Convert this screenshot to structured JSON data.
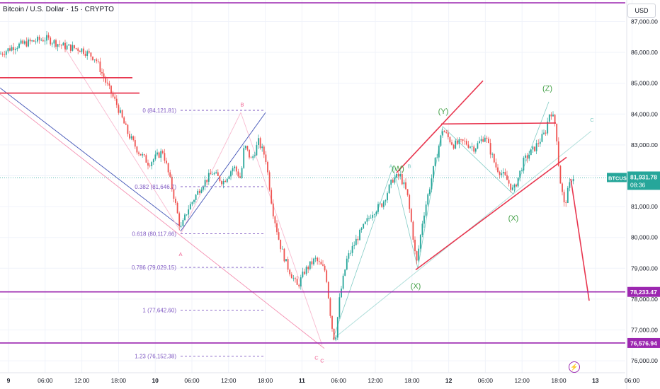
{
  "header": {
    "title": "Bitcoin / U.S. Dollar · 15 · CRYPTO",
    "currency": "USD"
  },
  "colors": {
    "up": "#26a69a",
    "down": "#ef5350",
    "purple": "#9c27b0",
    "red_line": "#e8364f",
    "fib": "#7e57c2",
    "wave": "#43a047",
    "pink": "#f06292",
    "navy": "#3f51b5",
    "teal": "#80cbc4"
  },
  "chart_data": {
    "type": "candlestick",
    "title": "Bitcoin / U.S. Dollar · 15 · CRYPTO",
    "symbol": "BTCUSD",
    "currency": "USD",
    "ylim": [
      75900,
      87350
    ],
    "y_ticks": [
      "87,000.00",
      "86,000.00",
      "85,000.00",
      "84,000.00",
      "83,000.00",
      "82,000.00",
      "81,000.00",
      "80,000.00",
      "79,000.00",
      "78,000.00",
      "77,000.00",
      "76,000.00"
    ],
    "x_ticks": [
      "9",
      "06:00",
      "12:00",
      "18:00",
      "10",
      "06:00",
      "12:00",
      "18:00",
      "11",
      "06:00",
      "12:00",
      "18:00",
      "12",
      "06:00",
      "12:00",
      "18:00",
      "13",
      "06:00"
    ],
    "price_path": [
      [
        0,
        85950
      ],
      [
        20,
        86200
      ],
      [
        45,
        86350
      ],
      [
        65,
        86450
      ],
      [
        90,
        86200
      ],
      [
        115,
        86100
      ],
      [
        135,
        85800
      ],
      [
        150,
        85000
      ],
      [
        165,
        84300
      ],
      [
        180,
        83400
      ],
      [
        195,
        82800
      ],
      [
        210,
        82400
      ],
      [
        230,
        82800
      ],
      [
        245,
        81400
      ],
      [
        255,
        80250
      ],
      [
        265,
        80900
      ],
      [
        285,
        81700
      ],
      [
        300,
        82100
      ],
      [
        315,
        81800
      ],
      [
        330,
        82300
      ],
      [
        340,
        81900
      ],
      [
        345,
        83000
      ],
      [
        355,
        82500
      ],
      [
        365,
        83100
      ],
      [
        375,
        82600
      ],
      [
        385,
        80900
      ],
      [
        395,
        79800
      ],
      [
        405,
        79100
      ],
      [
        420,
        78400
      ],
      [
        430,
        78900
      ],
      [
        445,
        79300
      ],
      [
        460,
        78900
      ],
      [
        468,
        77200
      ],
      [
        473,
        76600
      ],
      [
        480,
        78100
      ],
      [
        490,
        79300
      ],
      [
        505,
        80000
      ],
      [
        525,
        80800
      ],
      [
        540,
        81100
      ],
      [
        555,
        81900
      ],
      [
        565,
        82000
      ],
      [
        575,
        81400
      ],
      [
        582,
        80300
      ],
      [
        588,
        79100
      ],
      [
        597,
        80600
      ],
      [
        612,
        82200
      ],
      [
        625,
        83500
      ],
      [
        640,
        83000
      ],
      [
        655,
        83100
      ],
      [
        670,
        82900
      ],
      [
        685,
        83300
      ],
      [
        700,
        82300
      ],
      [
        715,
        81900
      ],
      [
        725,
        81500
      ],
      [
        740,
        82500
      ],
      [
        755,
        82900
      ],
      [
        770,
        83400
      ],
      [
        777,
        84150
      ],
      [
        785,
        83600
      ],
      [
        790,
        82000
      ],
      [
        797,
        81000
      ],
      [
        802,
        81500
      ],
      [
        808,
        82000
      ],
      [
        812,
        81900
      ]
    ],
    "current_price": {
      "label": "BTCUSD",
      "value": "81,931.78",
      "countdown": "08:36",
      "price": 81932
    },
    "horizontal_levels": [
      {
        "price": 78233.47,
        "label": "78,233.47"
      },
      {
        "price": 76576.94,
        "label": "76,576.94"
      }
    ],
    "fib_levels": [
      {
        "label": "0 (84,121.81)",
        "price": 84121.81
      },
      {
        "label": "0.382 (81,646.7)",
        "price": 81646.7
      },
      {
        "label": "0.618 (80,117.66)",
        "price": 80117.66
      },
      {
        "label": "0.786 (79,029.15)",
        "price": 79029.15
      },
      {
        "label": "1 (77,642.60)",
        "price": 77642.6
      },
      {
        "label": "1.23 (76,152.38)",
        "price": 76152.38
      }
    ],
    "wave_labels": [
      {
        "text": "(W)",
        "color": "wave",
        "price": 82150
      },
      {
        "text": "(Y)",
        "color": "wave",
        "price": 84050
      },
      {
        "text": "(X)",
        "color": "wave",
        "price": 81000
      },
      {
        "text": "(X)",
        "color": "wave",
        "price": 78800
      },
      {
        "text": "(Z)",
        "color": "wave",
        "price": 84750
      },
      {
        "text": "A",
        "color": "pink",
        "price": 79850
      },
      {
        "text": "B",
        "color": "pink",
        "price": 84250
      },
      {
        "text": "C",
        "color": "pink",
        "price": 76450
      },
      {
        "text": "C",
        "color": "pink",
        "price": 76400
      },
      {
        "text": "A",
        "color": "teal",
        "price": 82250
      },
      {
        "text": "B",
        "color": "teal",
        "price": 82250
      },
      {
        "text": "C",
        "color": "teal",
        "price": 83750
      }
    ]
  }
}
